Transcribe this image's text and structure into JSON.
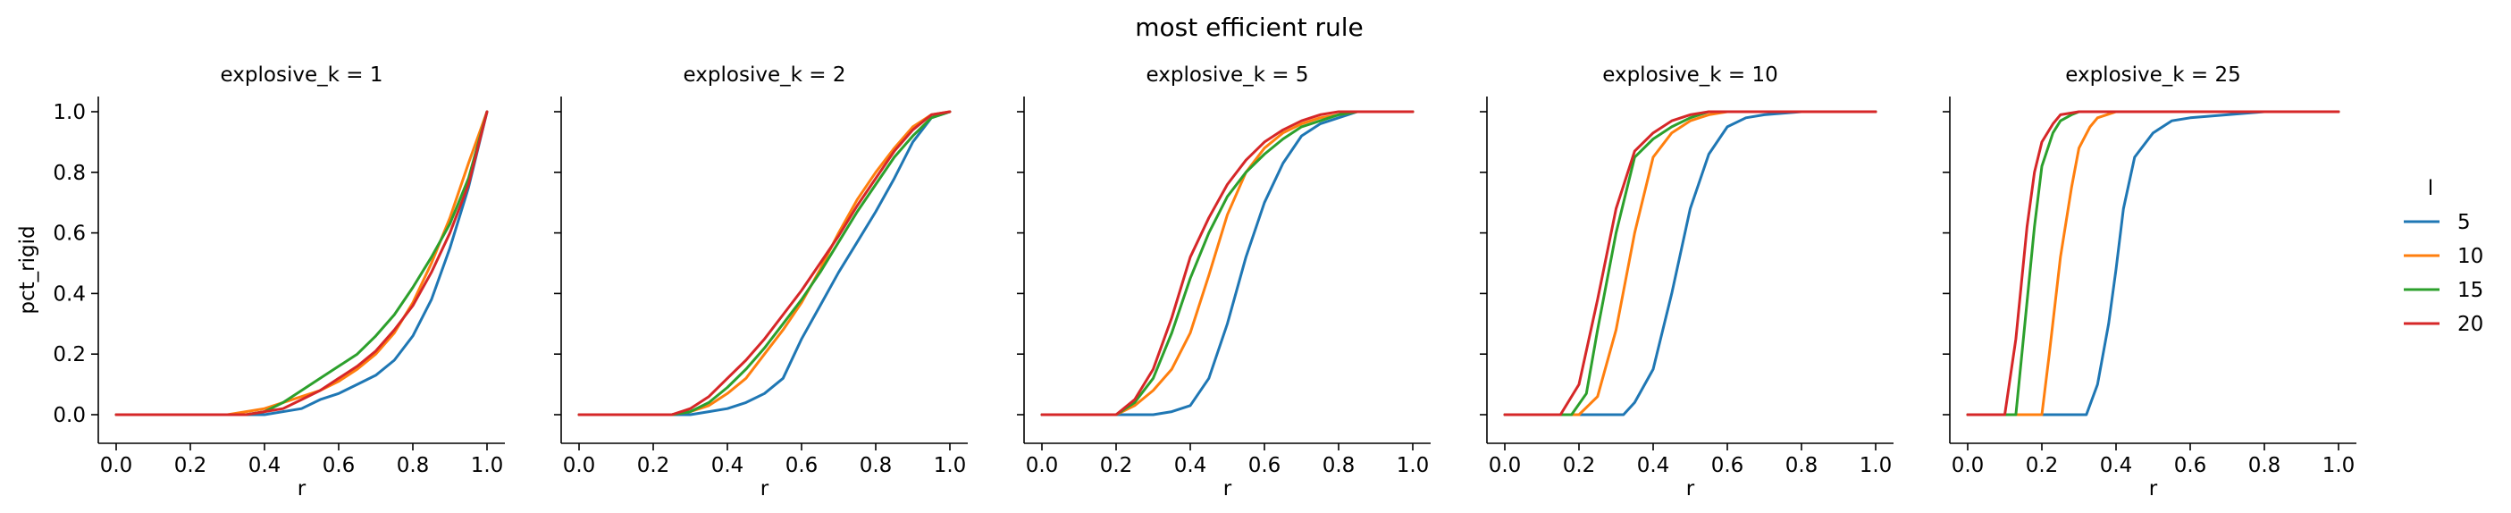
{
  "chart_data": {
    "type": "line",
    "title": "most efficient rule",
    "xlabel": "r",
    "ylabel": "pct_rigid",
    "xlim": [
      0.0,
      1.0
    ],
    "ylim": [
      0.0,
      1.0
    ],
    "xticks": [
      "0.0",
      "0.2",
      "0.4",
      "0.6",
      "0.8",
      "1.0"
    ],
    "yticks": [
      "0.0",
      "0.2",
      "0.4",
      "0.6",
      "0.8",
      "1.0"
    ],
    "grid": false,
    "legend": {
      "title": "l",
      "placement": "right",
      "entries": [
        {
          "label": "5",
          "color": "#1f77b4"
        },
        {
          "label": "10",
          "color": "#ff7f0e"
        },
        {
          "label": "15",
          "color": "#2ca02c"
        },
        {
          "label": "20",
          "color": "#d62728"
        }
      ]
    },
    "panels": [
      {
        "title": "explosive_k = 1",
        "series": [
          {
            "l": "5",
            "x": [
              0,
              0.3,
              0.4,
              0.5,
              0.55,
              0.6,
              0.65,
              0.7,
              0.75,
              0.8,
              0.85,
              0.9,
              0.95,
              1.0
            ],
            "y": [
              0,
              0,
              0,
              0.02,
              0.05,
              0.07,
              0.1,
              0.13,
              0.18,
              0.26,
              0.38,
              0.55,
              0.75,
              1.0
            ]
          },
          {
            "l": "10",
            "x": [
              0,
              0.3,
              0.35,
              0.4,
              0.45,
              0.5,
              0.55,
              0.6,
              0.65,
              0.7,
              0.75,
              0.8,
              0.85,
              0.9,
              0.95,
              1.0
            ],
            "y": [
              0,
              0,
              0.01,
              0.02,
              0.04,
              0.06,
              0.08,
              0.11,
              0.15,
              0.2,
              0.27,
              0.37,
              0.5,
              0.65,
              0.83,
              1.0
            ]
          },
          {
            "l": "15",
            "x": [
              0,
              0.35,
              0.4,
              0.45,
              0.5,
              0.55,
              0.6,
              0.65,
              0.7,
              0.75,
              0.8,
              0.85,
              0.9,
              0.95,
              1.0
            ],
            "y": [
              0,
              0,
              0.01,
              0.04,
              0.08,
              0.12,
              0.16,
              0.2,
              0.26,
              0.33,
              0.42,
              0.52,
              0.63,
              0.78,
              1.0
            ]
          },
          {
            "l": "20",
            "x": [
              0,
              0.35,
              0.4,
              0.45,
              0.5,
              0.55,
              0.6,
              0.65,
              0.7,
              0.75,
              0.8,
              0.85,
              0.9,
              0.95,
              1.0
            ],
            "y": [
              0,
              0,
              0.01,
              0.02,
              0.05,
              0.08,
              0.12,
              0.16,
              0.21,
              0.28,
              0.36,
              0.47,
              0.6,
              0.76,
              1.0
            ]
          }
        ]
      },
      {
        "title": "explosive_k = 2",
        "series": [
          {
            "l": "5",
            "x": [
              0,
              0.25,
              0.3,
              0.35,
              0.4,
              0.45,
              0.5,
              0.55,
              0.6,
              0.65,
              0.7,
              0.75,
              0.8,
              0.85,
              0.9,
              0.95,
              1.0
            ],
            "y": [
              0,
              0,
              0,
              0.01,
              0.02,
              0.04,
              0.07,
              0.12,
              0.25,
              0.36,
              0.47,
              0.57,
              0.67,
              0.78,
              0.9,
              0.98,
              1.0
            ]
          },
          {
            "l": "10",
            "x": [
              0,
              0.25,
              0.3,
              0.35,
              0.4,
              0.45,
              0.5,
              0.55,
              0.6,
              0.65,
              0.7,
              0.75,
              0.8,
              0.85,
              0.9,
              0.95,
              1.0
            ],
            "y": [
              0,
              0,
              0.01,
              0.03,
              0.07,
              0.12,
              0.2,
              0.28,
              0.37,
              0.48,
              0.6,
              0.71,
              0.8,
              0.88,
              0.95,
              0.99,
              1.0
            ]
          },
          {
            "l": "15",
            "x": [
              0,
              0.25,
              0.3,
              0.35,
              0.4,
              0.45,
              0.5,
              0.55,
              0.6,
              0.65,
              0.7,
              0.75,
              0.8,
              0.85,
              0.9,
              0.95,
              1.0
            ],
            "y": [
              0,
              0,
              0.01,
              0.04,
              0.09,
              0.15,
              0.22,
              0.3,
              0.38,
              0.47,
              0.57,
              0.67,
              0.76,
              0.85,
              0.92,
              0.98,
              1.0
            ]
          },
          {
            "l": "20",
            "x": [
              0,
              0.25,
              0.3,
              0.35,
              0.4,
              0.45,
              0.5,
              0.55,
              0.6,
              0.65,
              0.7,
              0.75,
              0.8,
              0.85,
              0.9,
              0.95,
              1.0
            ],
            "y": [
              0,
              0,
              0.02,
              0.06,
              0.12,
              0.18,
              0.25,
              0.33,
              0.41,
              0.5,
              0.59,
              0.69,
              0.78,
              0.87,
              0.94,
              0.99,
              1.0
            ]
          }
        ]
      },
      {
        "title": "explosive_k = 5",
        "series": [
          {
            "l": "5",
            "x": [
              0,
              0.3,
              0.35,
              0.4,
              0.45,
              0.5,
              0.55,
              0.6,
              0.65,
              0.7,
              0.75,
              0.8,
              0.85,
              0.9,
              1.0
            ],
            "y": [
              0,
              0,
              0.01,
              0.03,
              0.12,
              0.3,
              0.52,
              0.7,
              0.83,
              0.92,
              0.96,
              0.98,
              1.0,
              1.0,
              1.0
            ]
          },
          {
            "l": "10",
            "x": [
              0,
              0.2,
              0.25,
              0.3,
              0.35,
              0.4,
              0.45,
              0.5,
              0.55,
              0.6,
              0.65,
              0.7,
              0.75,
              0.8,
              0.85,
              0.9,
              1.0
            ],
            "y": [
              0,
              0,
              0.03,
              0.08,
              0.15,
              0.27,
              0.46,
              0.66,
              0.8,
              0.88,
              0.93,
              0.96,
              0.98,
              0.99,
              1.0,
              1.0,
              1.0
            ]
          },
          {
            "l": "15",
            "x": [
              0,
              0.2,
              0.25,
              0.3,
              0.35,
              0.4,
              0.45,
              0.5,
              0.55,
              0.6,
              0.65,
              0.7,
              0.75,
              0.8,
              0.85,
              0.9,
              1.0
            ],
            "y": [
              0,
              0,
              0.04,
              0.12,
              0.27,
              0.45,
              0.6,
              0.72,
              0.8,
              0.86,
              0.91,
              0.95,
              0.97,
              0.99,
              1.0,
              1.0,
              1.0
            ]
          },
          {
            "l": "20",
            "x": [
              0,
              0.2,
              0.25,
              0.3,
              0.35,
              0.4,
              0.45,
              0.5,
              0.55,
              0.6,
              0.65,
              0.7,
              0.75,
              0.8,
              0.85,
              0.9,
              1.0
            ],
            "y": [
              0,
              0,
              0.05,
              0.15,
              0.32,
              0.52,
              0.65,
              0.76,
              0.84,
              0.9,
              0.94,
              0.97,
              0.99,
              1.0,
              1.0,
              1.0,
              1.0
            ]
          }
        ]
      },
      {
        "title": "explosive_k = 10",
        "series": [
          {
            "l": "5",
            "x": [
              0,
              0.32,
              0.35,
              0.4,
              0.45,
              0.5,
              0.55,
              0.6,
              0.65,
              0.7,
              0.8,
              1.0
            ],
            "y": [
              0,
              0,
              0.04,
              0.15,
              0.4,
              0.68,
              0.86,
              0.95,
              0.98,
              0.99,
              1.0,
              1.0
            ]
          },
          {
            "l": "10",
            "x": [
              0,
              0.2,
              0.25,
              0.3,
              0.35,
              0.4,
              0.45,
              0.5,
              0.55,
              0.6,
              0.7,
              1.0
            ],
            "y": [
              0,
              0,
              0.06,
              0.28,
              0.6,
              0.85,
              0.93,
              0.97,
              0.99,
              1.0,
              1.0,
              1.0
            ]
          },
          {
            "l": "15",
            "x": [
              0,
              0.18,
              0.22,
              0.25,
              0.3,
              0.35,
              0.4,
              0.45,
              0.5,
              0.55,
              0.6,
              1.0
            ],
            "y": [
              0,
              0,
              0.07,
              0.28,
              0.6,
              0.85,
              0.91,
              0.95,
              0.98,
              1.0,
              1.0,
              1.0
            ]
          },
          {
            "l": "20",
            "x": [
              0,
              0.15,
              0.2,
              0.25,
              0.3,
              0.35,
              0.4,
              0.45,
              0.5,
              0.55,
              1.0
            ],
            "y": [
              0,
              0,
              0.1,
              0.38,
              0.68,
              0.87,
              0.93,
              0.97,
              0.99,
              1.0,
              1.0
            ]
          }
        ]
      },
      {
        "title": "explosive_k = 25",
        "series": [
          {
            "l": "5",
            "x": [
              0,
              0.32,
              0.35,
              0.38,
              0.4,
              0.42,
              0.45,
              0.5,
              0.55,
              0.6,
              0.7,
              0.8,
              1.0
            ],
            "y": [
              0,
              0,
              0.1,
              0.3,
              0.48,
              0.68,
              0.85,
              0.93,
              0.97,
              0.98,
              0.99,
              1.0,
              1.0
            ]
          },
          {
            "l": "10",
            "x": [
              0,
              0.2,
              0.22,
              0.25,
              0.28,
              0.3,
              0.33,
              0.35,
              0.4,
              0.5,
              1.0
            ],
            "y": [
              0,
              0,
              0.2,
              0.52,
              0.75,
              0.88,
              0.95,
              0.98,
              1.0,
              1.0,
              1.0
            ]
          },
          {
            "l": "15",
            "x": [
              0,
              0.13,
              0.15,
              0.18,
              0.2,
              0.23,
              0.25,
              0.28,
              0.3,
              0.4,
              1.0
            ],
            "y": [
              0,
              0,
              0.25,
              0.62,
              0.82,
              0.93,
              0.97,
              0.99,
              1.0,
              1.0,
              1.0
            ]
          },
          {
            "l": "20",
            "x": [
              0,
              0.1,
              0.13,
              0.16,
              0.18,
              0.2,
              0.23,
              0.25,
              0.3,
              0.4,
              1.0
            ],
            "y": [
              0,
              0,
              0.25,
              0.62,
              0.8,
              0.9,
              0.96,
              0.99,
              1.0,
              1.0,
              1.0
            ]
          }
        ]
      }
    ]
  }
}
